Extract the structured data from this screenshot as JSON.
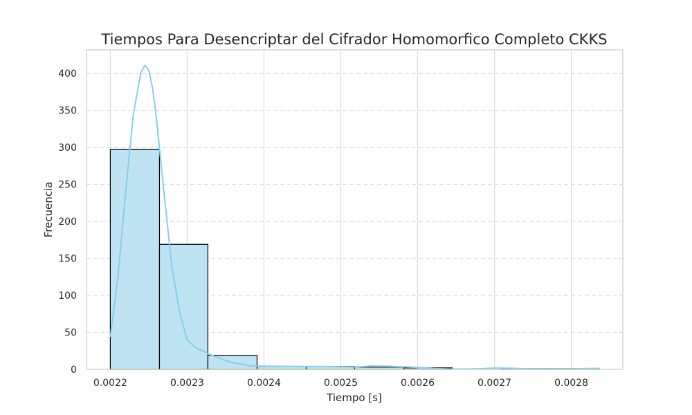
{
  "chart_data": {
    "type": "bar",
    "subtype": "histogram-with-kde",
    "title": "Tiempos Para Desencriptar del Cifrador Homomorfico Completo CKKS",
    "xlabel": "Tiempo [s]",
    "ylabel": "Frecuencia",
    "xlim": [
      0.002169,
      0.002867
    ],
    "ylim": [
      0,
      432
    ],
    "x_ticks": [
      "0.0022",
      "0.0023",
      "0.0024",
      "0.0025",
      "0.0026",
      "0.0027",
      "0.0028"
    ],
    "x_tick_values": [
      0.0022,
      0.0023,
      0.0024,
      0.0025,
      0.0026,
      0.0027,
      0.0028
    ],
    "y_ticks": [
      "0",
      "50",
      "100",
      "150",
      "200",
      "250",
      "300",
      "350",
      "400"
    ],
    "y_tick_values": [
      0,
      50,
      100,
      150,
      200,
      250,
      300,
      350,
      400
    ],
    "bin_edges": [
      0.0022,
      0.002264,
      0.002327,
      0.002391,
      0.002455,
      0.002518,
      0.002582,
      0.002645,
      0.002709,
      0.002772,
      0.002836
    ],
    "counts": [
      297,
      169,
      19,
      4,
      4,
      3,
      2,
      0,
      1,
      1
    ],
    "kde": {
      "x": [
        0.0022,
        0.00221,
        0.00222,
        0.00223,
        0.00224,
        0.002245,
        0.00225,
        0.002255,
        0.00226,
        0.00227,
        0.00228,
        0.00229,
        0.0023,
        0.00231,
        0.00232,
        0.00233,
        0.00234,
        0.00235,
        0.00236,
        0.00237,
        0.00238,
        0.00239,
        0.0024,
        0.00242,
        0.00244,
        0.00246,
        0.00248,
        0.0025,
        0.00252,
        0.00254,
        0.00256,
        0.00258,
        0.0026,
        0.00262,
        0.00264,
        0.00266,
        0.00268,
        0.0027,
        0.00272,
        0.00274,
        0.00276,
        0.00278,
        0.0028,
        0.00282,
        0.002836
      ],
      "y": [
        44,
        125,
        240,
        345,
        402,
        411,
        405,
        380,
        340,
        238,
        140,
        78,
        40,
        30,
        25,
        20,
        16,
        12,
        9,
        7,
        5,
        4.5,
        4.3,
        4.2,
        4.1,
        4.0,
        3.8,
        3.5,
        3.3,
        4.5,
        4.2,
        3.5,
        2.5,
        1.2,
        0.5,
        0.5,
        0.8,
        1.8,
        1.5,
        0.8,
        0.5,
        0.5,
        0.6,
        1.2,
        1.4
      ]
    },
    "grid": true,
    "colors": {
      "bar_fill": "#bee4f3",
      "bar_edge": "#000000",
      "kde_line": "#87ceeb",
      "grid": "#dcdcdc",
      "spine": "#cccccc",
      "text": "#262626"
    }
  }
}
